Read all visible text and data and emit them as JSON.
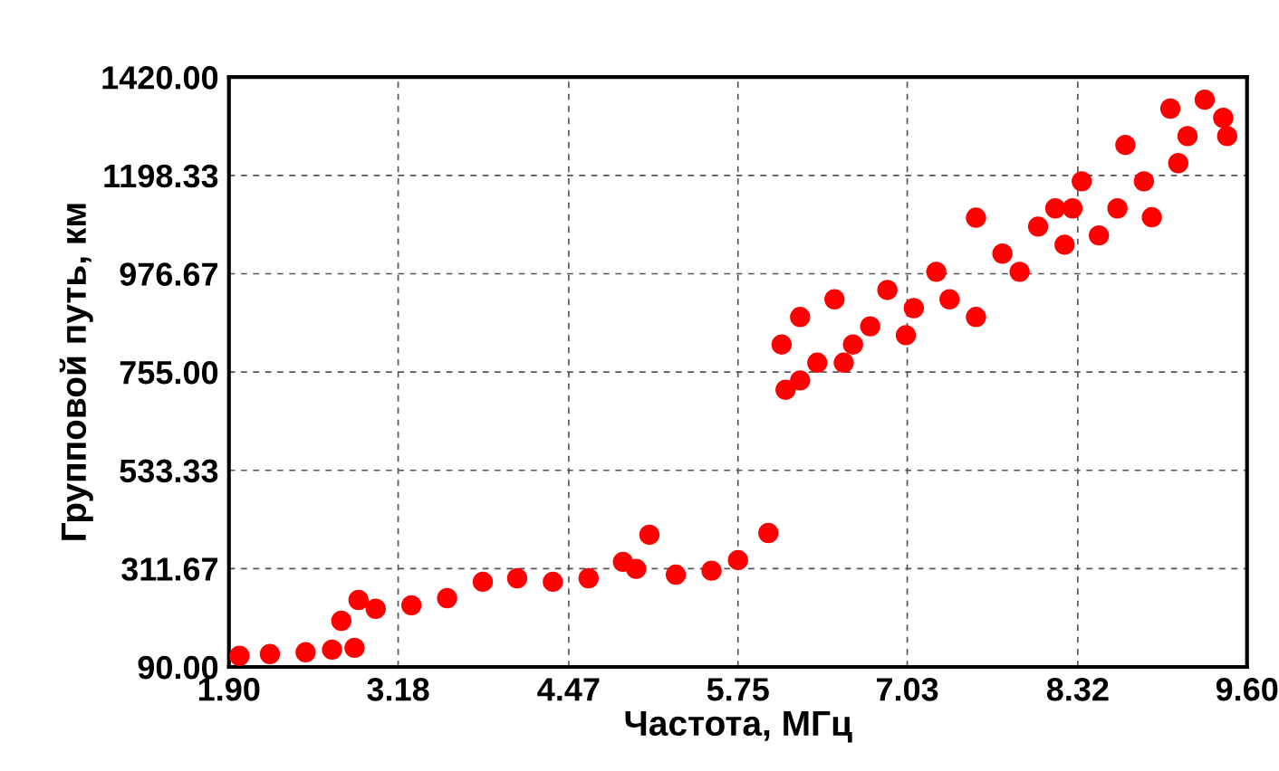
{
  "chart_data": {
    "type": "scatter",
    "xlabel": "Частота, МГц",
    "ylabel": "Групповой путь, км",
    "xlim": [
      1.9,
      9.6
    ],
    "xticks": [
      {
        "value": 1.9,
        "label": "1.90"
      },
      {
        "value": 3.18,
        "label": "3.18"
      },
      {
        "value": 4.47,
        "label": "4.47"
      },
      {
        "value": 5.75,
        "label": "5.75"
      },
      {
        "value": 7.03,
        "label": "7.03"
      },
      {
        "value": 8.32,
        "label": "8.32"
      },
      {
        "value": 9.6,
        "label": "9.60"
      }
    ],
    "ylim": [
      90,
      1420
    ],
    "yticks": [
      {
        "value": 90,
        "label": "90.00"
      },
      {
        "value": 311.67,
        "label": "311.67"
      },
      {
        "value": 533.33,
        "label": "533.33"
      },
      {
        "value": 755,
        "label": "755.00"
      },
      {
        "value": 976.67,
        "label": "976.67"
      },
      {
        "value": 1198.33,
        "label": "1198.33"
      },
      {
        "value": 1420,
        "label": "1420.00"
      }
    ],
    "grid": true,
    "marker": "circle",
    "series": [
      {
        "color": "#ff0000",
        "x": [
          1.98,
          2.21,
          2.48,
          2.68,
          2.85,
          2.75,
          2.88,
          3.01,
          3.28,
          3.55,
          3.82,
          4.08,
          4.35,
          4.62,
          4.88,
          5.08,
          4.98,
          5.28,
          5.55,
          5.75,
          5.98,
          6.08,
          6.11,
          6.22,
          6.35,
          6.48,
          6.62,
          6.75,
          6.88,
          7.02,
          7.08,
          6.22,
          6.55,
          7.25,
          7.35,
          7.55,
          7.55,
          7.75,
          7.88,
          8.02,
          8.15,
          8.22,
          8.28,
          8.35,
          8.48,
          8.62,
          8.68,
          8.82,
          8.88,
          9.02,
          9.08,
          9.15,
          9.28,
          9.42,
          9.45
        ],
        "values": [
          115,
          119,
          123,
          129,
          133,
          194,
          241,
          221,
          229,
          245,
          282,
          290,
          282,
          290,
          327,
          388,
          311,
          298,
          307,
          331,
          392,
          817,
          715,
          879,
          776,
          919,
          817,
          858,
          940,
          838,
          899,
          736,
          776,
          981,
          919,
          879,
          1103,
          1022,
          981,
          1083,
          1124,
          1042,
          1124,
          1185,
          1063,
          1124,
          1267,
          1185,
          1104,
          1349,
          1226,
          1287,
          1369,
          1328,
          1287
        ]
      }
    ]
  }
}
